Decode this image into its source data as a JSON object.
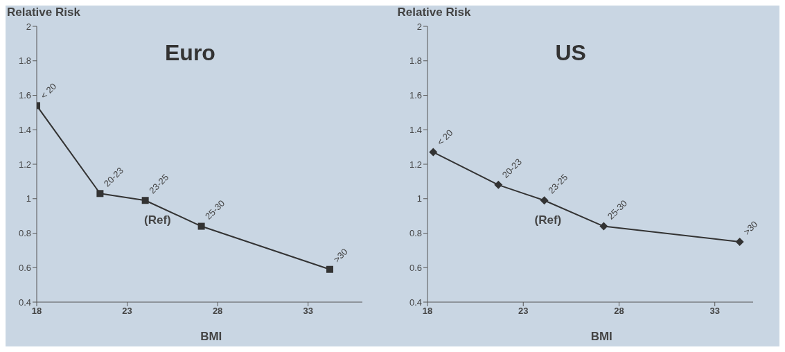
{
  "chart_data": [
    {
      "type": "line",
      "title": "Euro",
      "xlabel": "BMI",
      "ylabel": "Relative Risk",
      "x": [
        18,
        21.5,
        24,
        27.1,
        34.2
      ],
      "series": [
        {
          "color": "#333333",
          "values": [
            1.54,
            1.03,
            0.99,
            0.84,
            0.59
          ]
        }
      ],
      "xlim": [
        18,
        36
      ],
      "xticks": [
        18,
        23,
        28,
        33
      ],
      "ylim": [
        0.4,
        2
      ],
      "yticks": [
        0.4,
        0.6,
        0.8,
        1,
        1.2,
        1.4,
        1.6,
        1.8,
        2
      ],
      "marker": "square",
      "grid": false,
      "legend": false,
      "annotations": [
        {
          "text": "< 20",
          "x": 18,
          "y": 1.54
        },
        {
          "text": "20-23",
          "x": 21.5,
          "y": 1.03
        },
        {
          "text": "23-25",
          "x": 24,
          "y": 0.99
        },
        {
          "text": "25-30",
          "x": 27.1,
          "y": 0.84
        },
        {
          "text": ">30",
          "x": 34.2,
          "y": 0.59
        },
        "(Ref)"
      ]
    },
    {
      "type": "line",
      "title": "US",
      "xlabel": "BMI",
      "ylabel": "Relative Risk",
      "x": [
        18.3,
        21.7,
        24.1,
        27.2,
        34.3
      ],
      "series": [
        {
          "color": "#333333",
          "values": [
            1.27,
            1.08,
            0.99,
            0.84,
            0.75
          ]
        }
      ],
      "xlim": [
        18,
        35
      ],
      "xticks": [
        18,
        23,
        28,
        33
      ],
      "ylim": [
        0.4,
        2
      ],
      "yticks": [
        0.4,
        0.6,
        0.8,
        1,
        1.2,
        1.4,
        1.6,
        1.8,
        2
      ],
      "marker": "diamond",
      "grid": false,
      "legend": false,
      "annotations": [
        {
          "text": "< 20",
          "x": 18.3,
          "y": 1.27
        },
        {
          "text": "20-23",
          "x": 21.7,
          "y": 1.08
        },
        {
          "text": "23-25",
          "x": 24.1,
          "y": 0.99
        },
        {
          "text": "25-30",
          "x": 27.2,
          "y": 0.84
        },
        {
          "text": ">30",
          "x": 34.3,
          "y": 0.75
        },
        "(Ref)"
      ]
    }
  ]
}
